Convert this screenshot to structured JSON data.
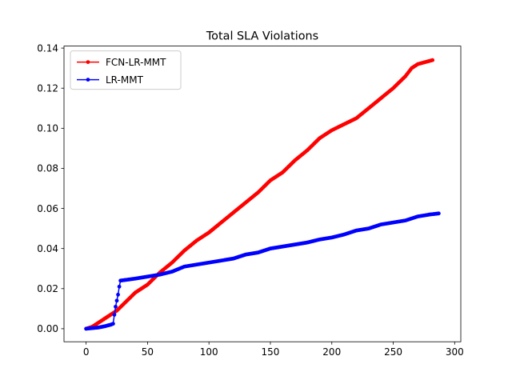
{
  "chart_data": {
    "type": "line",
    "title": "Total SLA Violations",
    "xlabel": "",
    "ylabel": "",
    "xlim": [
      -18,
      305
    ],
    "ylim": [
      -0.0065,
      0.141
    ],
    "xticks": [
      0,
      50,
      100,
      150,
      200,
      250,
      300
    ],
    "yticks": [
      0.0,
      0.02,
      0.04,
      0.06,
      0.08,
      0.1,
      0.12,
      0.14
    ],
    "xtick_labels": [
      "0",
      "50",
      "100",
      "150",
      "200",
      "250",
      "300"
    ],
    "ytick_labels": [
      "0.00",
      "0.02",
      "0.04",
      "0.06",
      "0.08",
      "0.10",
      "0.12",
      "0.14"
    ],
    "grid": false,
    "legend_position": "top-left",
    "series": [
      {
        "name": "FCN-LR-MMT",
        "color": "#ff0000",
        "marker": "circle",
        "keypoints": [
          [
            0,
            0.0
          ],
          [
            5,
            0.001
          ],
          [
            10,
            0.003
          ],
          [
            15,
            0.005
          ],
          [
            20,
            0.007
          ],
          [
            25,
            0.009
          ],
          [
            30,
            0.012
          ],
          [
            35,
            0.015
          ],
          [
            40,
            0.018
          ],
          [
            50,
            0.022
          ],
          [
            60,
            0.028
          ],
          [
            70,
            0.033
          ],
          [
            80,
            0.039
          ],
          [
            90,
            0.044
          ],
          [
            100,
            0.048
          ],
          [
            110,
            0.053
          ],
          [
            120,
            0.058
          ],
          [
            130,
            0.063
          ],
          [
            140,
            0.068
          ],
          [
            150,
            0.074
          ],
          [
            160,
            0.078
          ],
          [
            170,
            0.084
          ],
          [
            180,
            0.089
          ],
          [
            190,
            0.095
          ],
          [
            200,
            0.099
          ],
          [
            210,
            0.102
          ],
          [
            220,
            0.105
          ],
          [
            230,
            0.11
          ],
          [
            240,
            0.115
          ],
          [
            250,
            0.12
          ],
          [
            260,
            0.126
          ],
          [
            265,
            0.13
          ],
          [
            270,
            0.132
          ],
          [
            282,
            0.134
          ]
        ]
      },
      {
        "name": "LR-MMT",
        "color": "#0000ff",
        "marker": "circle",
        "keypoints": [
          [
            0,
            0.0
          ],
          [
            10,
            0.0006
          ],
          [
            15,
            0.0012
          ],
          [
            20,
            0.002
          ],
          [
            22,
            0.0025
          ],
          [
            23,
            0.007
          ],
          [
            24,
            0.011
          ],
          [
            25,
            0.014
          ],
          [
            26,
            0.017
          ],
          [
            27,
            0.021
          ],
          [
            28,
            0.024
          ],
          [
            40,
            0.025
          ],
          [
            50,
            0.026
          ],
          [
            60,
            0.027
          ],
          [
            70,
            0.0285
          ],
          [
            80,
            0.031
          ],
          [
            90,
            0.032
          ],
          [
            100,
            0.033
          ],
          [
            110,
            0.034
          ],
          [
            120,
            0.035
          ],
          [
            130,
            0.037
          ],
          [
            140,
            0.038
          ],
          [
            150,
            0.04
          ],
          [
            160,
            0.041
          ],
          [
            170,
            0.042
          ],
          [
            180,
            0.043
          ],
          [
            190,
            0.0445
          ],
          [
            200,
            0.0455
          ],
          [
            210,
            0.047
          ],
          [
            220,
            0.049
          ],
          [
            230,
            0.05
          ],
          [
            240,
            0.052
          ],
          [
            250,
            0.053
          ],
          [
            260,
            0.054
          ],
          [
            270,
            0.056
          ],
          [
            280,
            0.057
          ],
          [
            287,
            0.0575
          ]
        ]
      }
    ]
  }
}
